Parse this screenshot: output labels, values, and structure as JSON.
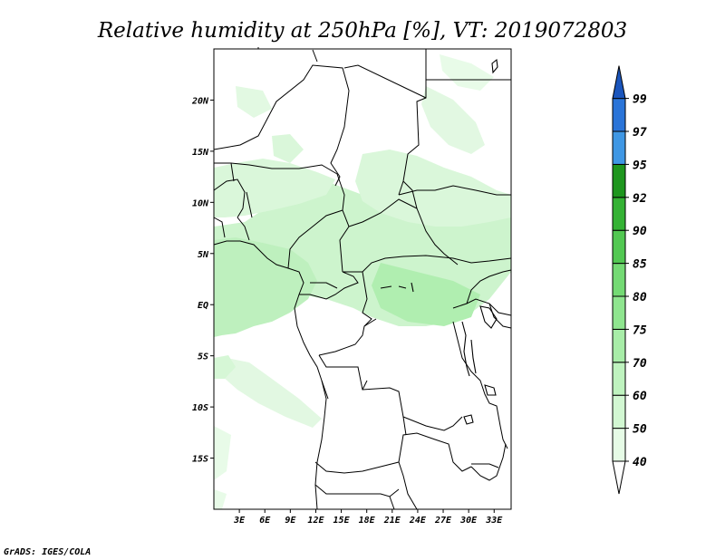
{
  "title": "Relative humidity at 250hPa [%], VT: 2019072803",
  "credit": "GrADS: IGES/COLA",
  "map": {
    "lat_labels": [
      "20N",
      "15N",
      "10N",
      "5N",
      "EQ",
      "5S",
      "10S",
      "15S"
    ],
    "lon_labels": [
      "3E",
      "6E",
      "9E",
      "12E",
      "15E",
      "18E",
      "21E",
      "24E",
      "27E",
      "30E",
      "33E"
    ],
    "lon_range": [
      0,
      35
    ],
    "lat_range": [
      -20,
      25
    ]
  },
  "colorbar": {
    "labels": [
      "40",
      "50",
      "60",
      "70",
      "75",
      "80",
      "85",
      "90",
      "92",
      "95",
      "97",
      "99"
    ],
    "colors": [
      "#ffffff",
      "#e6fbe6",
      "#d2f7d2",
      "#bff3bf",
      "#a8eda8",
      "#8fe58f",
      "#74da74",
      "#52c852",
      "#34b234",
      "#1e961e",
      "#3f97e4",
      "#2a74d8",
      "#1a55bc"
    ]
  }
}
